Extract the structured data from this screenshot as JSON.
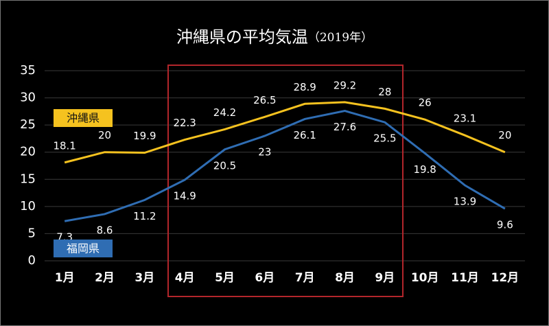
{
  "chart_data": {
    "type": "line",
    "title": "沖縄県の平均気温",
    "subtitle": "（2019年）",
    "categories": [
      "1月",
      "2月",
      "3月",
      "4月",
      "5月",
      "6月",
      "7月",
      "8月",
      "9月",
      "10月",
      "11月",
      "12月"
    ],
    "series": [
      {
        "name": "沖縄県",
        "color": "#f5c21f",
        "values": [
          18.1,
          20,
          19.9,
          22.3,
          24.2,
          26.5,
          28.9,
          29.2,
          28,
          26,
          23.1,
          20
        ]
      },
      {
        "name": "福岡県",
        "color": "#2f6db3",
        "values": [
          7.3,
          8.6,
          11.2,
          14.9,
          20.5,
          23,
          26.1,
          27.6,
          25.5,
          19.8,
          13.9,
          9.6
        ]
      }
    ],
    "ylim": [
      0,
      35
    ],
    "yticks": [
      0,
      5,
      10,
      15,
      20,
      25,
      30,
      35
    ],
    "grid": true
  }
}
